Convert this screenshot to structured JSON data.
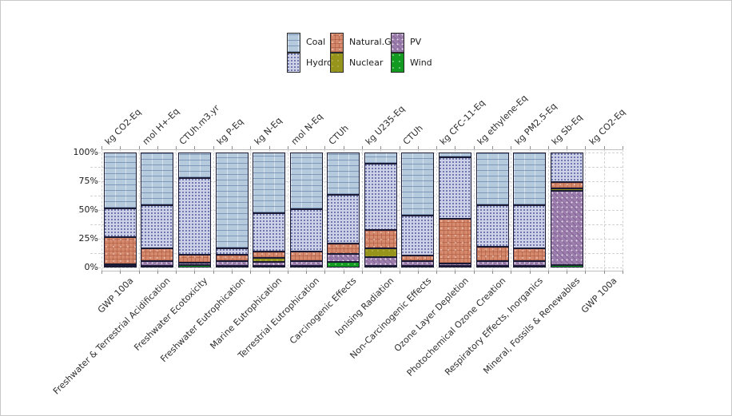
{
  "legend": {
    "columns": [
      {
        "items": [
          {
            "label": "Coal",
            "key": "coal"
          },
          {
            "label": "Hydro",
            "key": "hydro"
          }
        ]
      },
      {
        "items": [
          {
            "label": "Natural.Gas",
            "key": "gas"
          },
          {
            "label": "Nuclear",
            "key": "nuclear"
          }
        ]
      },
      {
        "items": [
          {
            "label": "PV",
            "key": "pv"
          },
          {
            "label": "Wind",
            "key": "wind"
          }
        ]
      }
    ]
  },
  "colors": {
    "coal": "#b6cade",
    "hydro": "#ccd1e7",
    "natural_gas": "#d58a6e",
    "nuclear": "#97941b",
    "pv": "#9c7ead",
    "wind": "#129b20",
    "segment_border": "#1b1b36",
    "gridline": "#d2d2d2"
  },
  "y_axis": {
    "tick_labels": [
      "100%",
      "75%",
      "50%",
      "25%",
      "0%"
    ]
  },
  "chart_data": {
    "type": "bar",
    "stacked": true,
    "orientation": "vertical",
    "ylim": [
      0,
      100
    ],
    "unit_of_values": "percent share",
    "grid": "dashed",
    "legend_position": "top",
    "y_tick_labels": [
      "0%",
      "25%",
      "50%",
      "75%",
      "100%"
    ],
    "stack_order_bottom_to_top": [
      "Wind",
      "PV",
      "Nuclear",
      "Natural.Gas",
      "Hydro",
      "Coal"
    ],
    "categories": [
      {
        "label": "GWP 100a",
        "unit": "kg CO2-Eq",
        "values": {
          "Wind": 1,
          "PV": 1.5,
          "Nuclear": 0,
          "Natural.Gas": 23.5,
          "Hydro": 25.5,
          "Coal": 48.5
        }
      },
      {
        "label": "Freshwater & Terrestrial Acidification",
        "unit": "mol H+-Eq",
        "values": {
          "Wind": 0.5,
          "PV": 4,
          "Nuclear": 0,
          "Natural.Gas": 11.5,
          "Hydro": 38,
          "Coal": 46
        }
      },
      {
        "label": "Freshwater Ecotoxicity",
        "unit": "CTUh.m3.yr",
        "values": {
          "Wind": 2,
          "PV": 2.5,
          "Nuclear": 0,
          "Natural.Gas": 6.5,
          "Hydro": 67,
          "Coal": 22
        }
      },
      {
        "label": "Freshwater Eutrophication",
        "unit": "kg P-Eq",
        "values": {
          "Wind": 0.5,
          "PV": 4,
          "Nuclear": 0,
          "Natural.Gas": 5.5,
          "Hydro": 6,
          "Coal": 84
        }
      },
      {
        "label": "Marine Eutrophication",
        "unit": "kg N-Eq",
        "values": {
          "Wind": 0.5,
          "PV": 3.5,
          "Nuclear": 3.5,
          "Natural.Gas": 5.5,
          "Hydro": 34,
          "Coal": 53
        }
      },
      {
        "label": "Terrestrial Eutrophication",
        "unit": "mol N-Eq",
        "values": {
          "Wind": 0.5,
          "PV": 4,
          "Nuclear": 0,
          "Natural.Gas": 8.5,
          "Hydro": 37,
          "Coal": 50
        }
      },
      {
        "label": "Carcinogenic Effects",
        "unit": "CTUh",
        "values": {
          "Wind": 5,
          "PV": 6.5,
          "Nuclear": 0,
          "Natural.Gas": 9.5,
          "Hydro": 42,
          "Coal": 37
        }
      },
      {
        "label": "Ionising Radiation",
        "unit": "kg U235-Eq",
        "values": {
          "Wind": 0.5,
          "PV": 7.5,
          "Nuclear": 8,
          "Natural.Gas": 16,
          "Hydro": 58,
          "Coal": 10
        }
      },
      {
        "label": "Non-Carcinogenic Effects",
        "unit": "CTUh",
        "values": {
          "Wind": 1,
          "PV": 4,
          "Nuclear": 0,
          "Natural.Gas": 5,
          "Hydro": 35,
          "Coal": 55
        }
      },
      {
        "label": "Ozone Layer Depletion",
        "unit": "kg CFC-11-Eq",
        "values": {
          "Wind": 0.5,
          "PV": 2,
          "Nuclear": 0,
          "Natural.Gas": 39.5,
          "Hydro": 54,
          "Coal": 4
        }
      },
      {
        "label": "Photochemical Ozone Creation",
        "unit": "kg ethylene-Eq",
        "values": {
          "Wind": 0.5,
          "PV": 4.5,
          "Nuclear": 0,
          "Natural.Gas": 12,
          "Hydro": 37,
          "Coal": 46
        }
      },
      {
        "label": "Respiratory Effects, Inorganics",
        "unit": "kg PM2.5-Eq",
        "values": {
          "Wind": 1,
          "PV": 4,
          "Nuclear": 0,
          "Natural.Gas": 11,
          "Hydro": 38,
          "Coal": 46
        }
      },
      {
        "label": "Mineral, Fossils & Renewables",
        "unit": "kg Sb-Eq",
        "values": {
          "Wind": 2,
          "PV": 65,
          "Nuclear": 2,
          "Natural.Gas": 5,
          "Hydro": 26,
          "Coal": 0
        }
      },
      {
        "label": "GWP 100a",
        "unit": "kg CO2-Eq",
        "values": {
          "Wind": 0,
          "PV": 0,
          "Nuclear": 0,
          "Natural.Gas": 0,
          "Hydro": 0,
          "Coal": 0
        }
      }
    ]
  }
}
